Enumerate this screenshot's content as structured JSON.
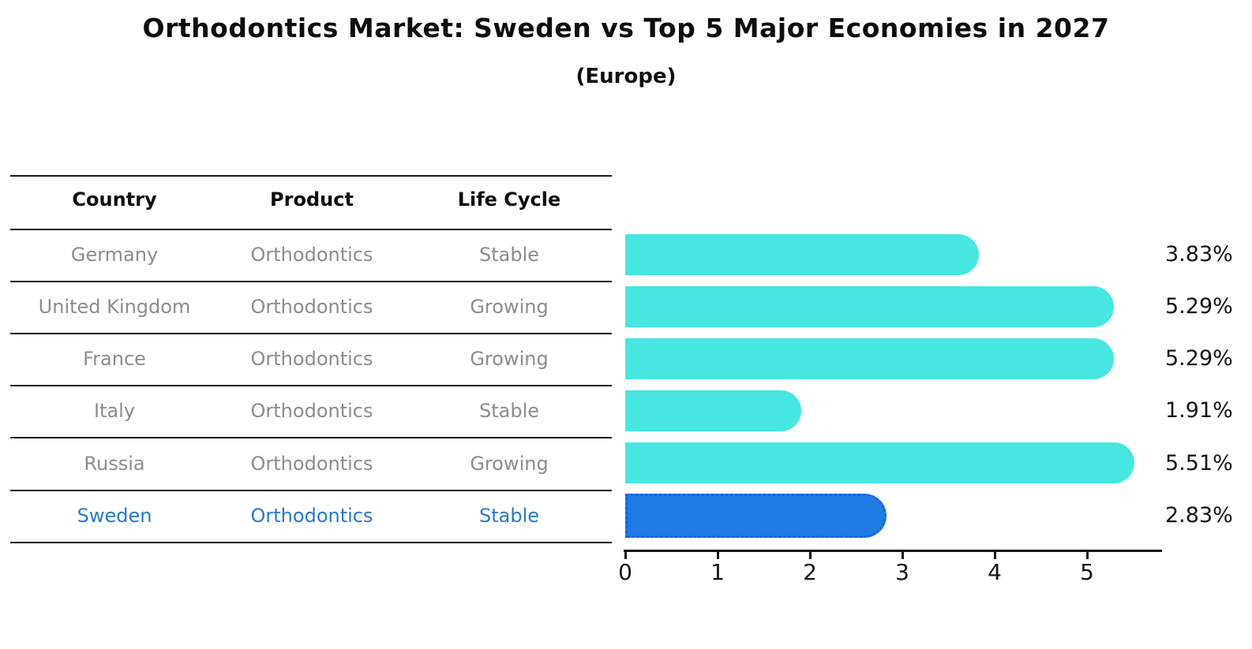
{
  "title": "Orthodontics Market: Sweden vs Top 5 Major Economies in 2027",
  "subtitle": "(Europe)",
  "table": {
    "headers": [
      "Country",
      "Product",
      "Life Cycle"
    ],
    "rows": [
      {
        "country": "Germany",
        "product": "Orthodontics",
        "life_cycle": "Stable",
        "value": 3.83,
        "value_label": "3.83%",
        "highlight": false
      },
      {
        "country": "United Kingdom",
        "product": "Orthodontics",
        "life_cycle": "Growing",
        "value": 5.29,
        "value_label": "5.29%",
        "highlight": false
      },
      {
        "country": "France",
        "product": "Orthodontics",
        "life_cycle": "Growing",
        "value": 5.29,
        "value_label": "5.29%",
        "highlight": false
      },
      {
        "country": "Italy",
        "product": "Orthodontics",
        "life_cycle": "Stable",
        "value": 1.91,
        "value_label": "1.91%",
        "highlight": false
      },
      {
        "country": "Russia",
        "product": "Orthodontics",
        "life_cycle": "Growing",
        "value": 5.51,
        "value_label": "5.51%",
        "highlight": false
      },
      {
        "country": "Sweden",
        "product": "Orthodontics",
        "life_cycle": "Stable",
        "value": 2.83,
        "value_label": "2.83%",
        "highlight": true
      }
    ]
  },
  "chart_data": {
    "type": "bar",
    "orientation": "horizontal",
    "title": "Orthodontics Market: Sweden vs Top 5 Major Economies in 2027 (Europe)",
    "categories": [
      "Germany",
      "United Kingdom",
      "France",
      "Italy",
      "Russia",
      "Sweden"
    ],
    "values": [
      3.83,
      5.29,
      5.29,
      1.91,
      5.51,
      2.83
    ],
    "value_labels": [
      "3.83%",
      "5.29%",
      "5.29%",
      "1.91%",
      "5.51%",
      "2.83%"
    ],
    "xticks": [
      0,
      1,
      2,
      3,
      4,
      5
    ],
    "xlim": [
      0,
      5.8
    ],
    "grid": false,
    "legend": false,
    "bar_color": "#47E6E0",
    "highlight_color": "#1F7AE4",
    "highlight_edge_color": "#1565D8",
    "highlight_index": 5
  },
  "colors": {
    "muted_text": "#8c8c8c",
    "highlight_text": "#2878CB",
    "line": "#1a1a1a"
  }
}
